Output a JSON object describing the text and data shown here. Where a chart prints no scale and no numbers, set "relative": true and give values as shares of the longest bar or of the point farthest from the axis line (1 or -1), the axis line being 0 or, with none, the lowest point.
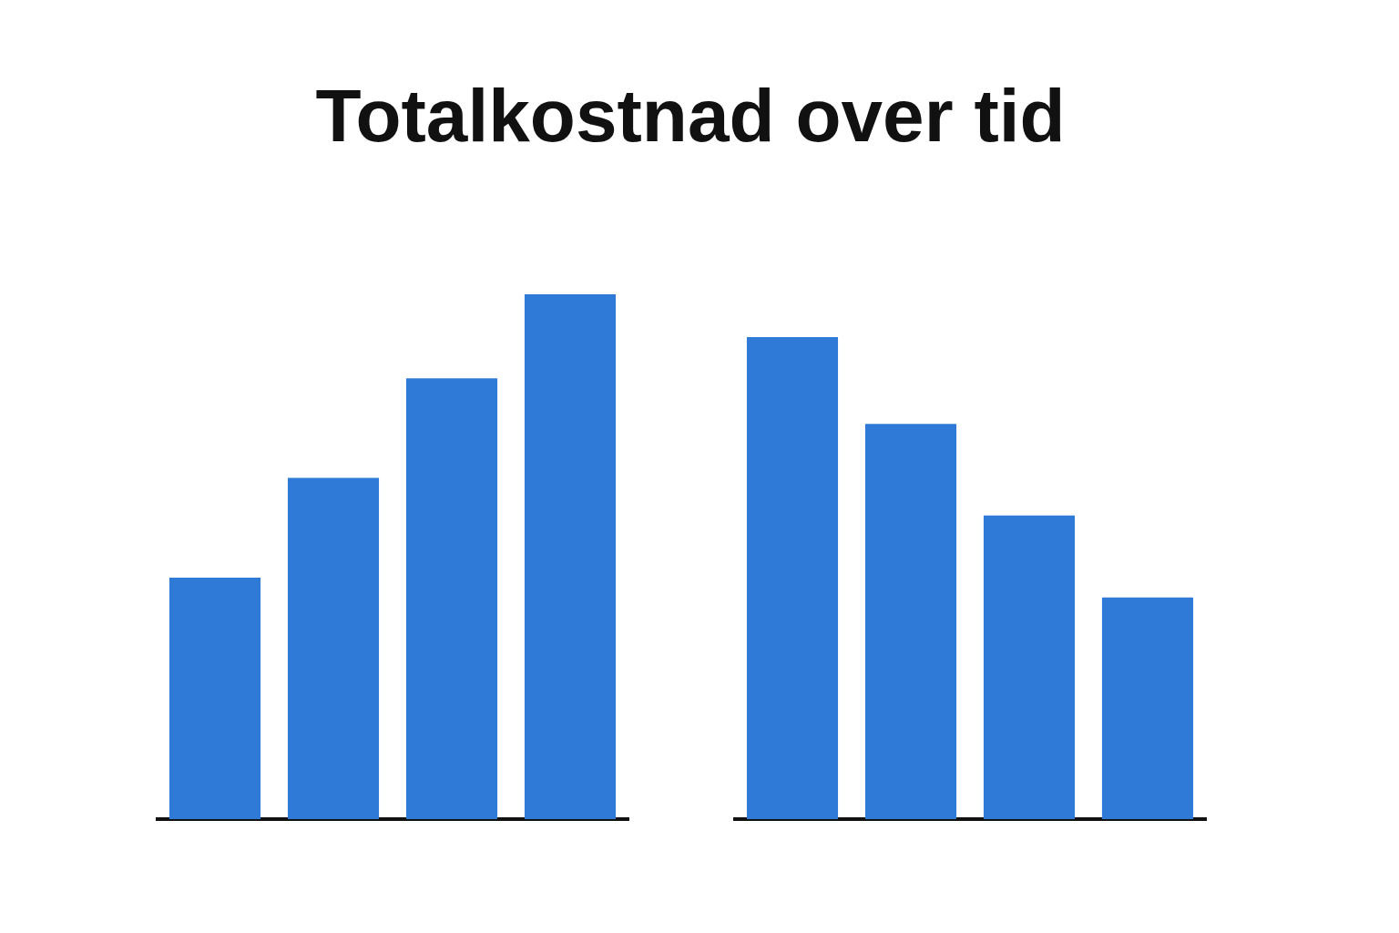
{
  "chart_data": [
    {
      "type": "bar",
      "title": "Totalkostnad over tid",
      "relative": true,
      "color": "#2f7ad6",
      "categories": [
        null,
        null,
        null,
        null
      ],
      "values": [
        0.46,
        0.65,
        0.84,
        1
      ]
    },
    {
      "type": "bar",
      "relative": true,
      "color": "#2f7ad6",
      "categories": [
        null,
        null,
        null,
        null
      ],
      "values": [
        1,
        0.82,
        0.63,
        0.46
      ]
    }
  ]
}
